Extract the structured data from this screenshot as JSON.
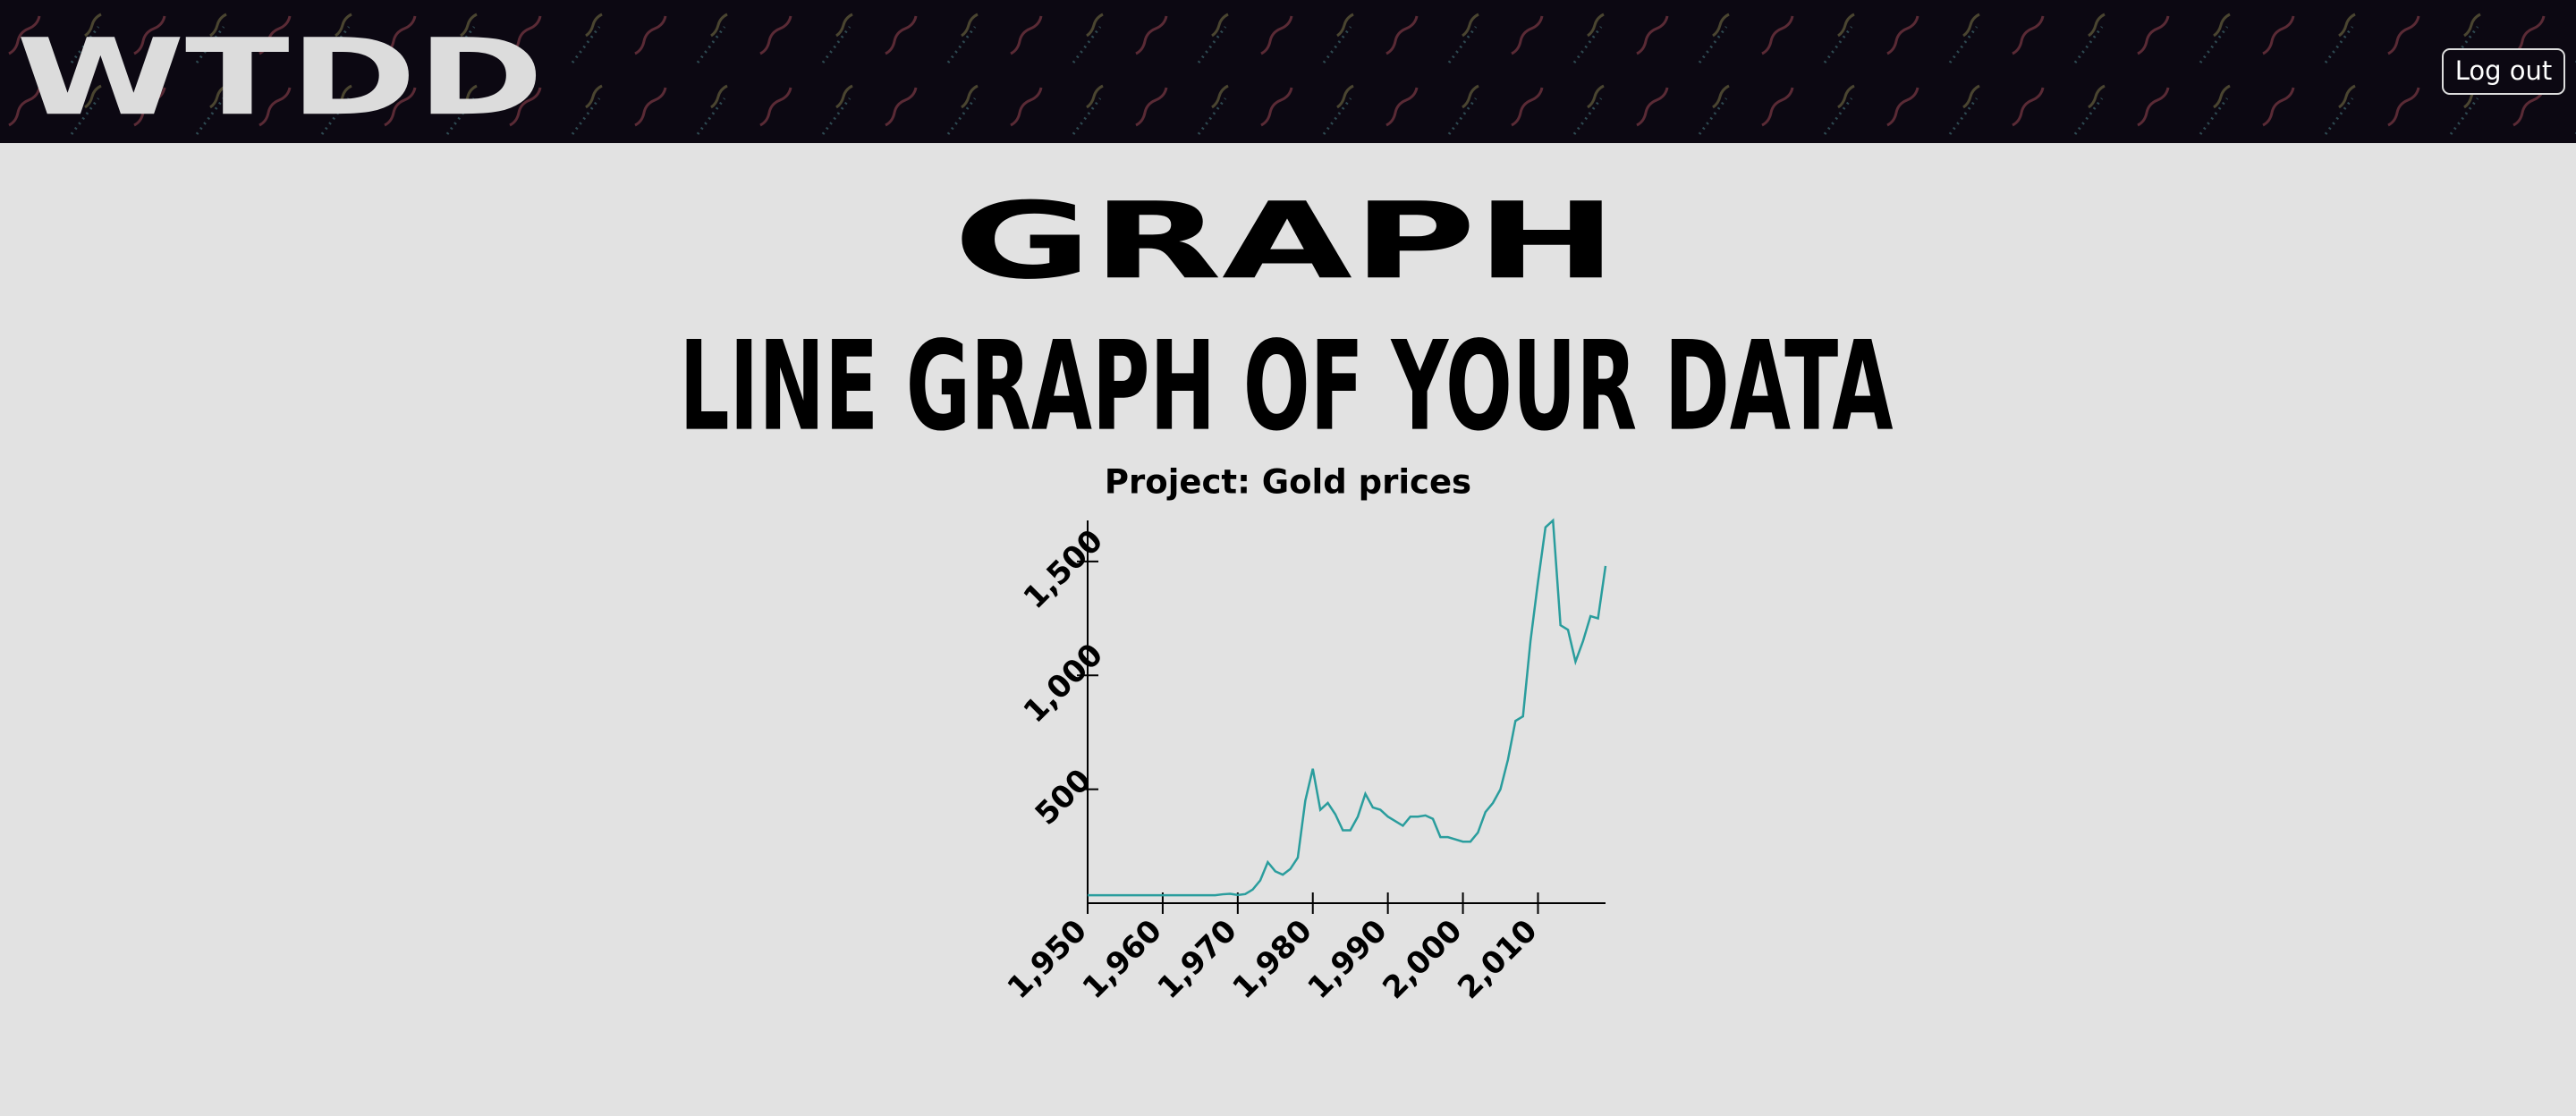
{
  "header": {
    "logo": "WTDD",
    "logout": "Log out"
  },
  "page": {
    "title": "GRAPH",
    "heading": "LINE GRAPH OF YOUR DATA"
  },
  "chart_data": {
    "type": "line",
    "title": "Project: Gold prices",
    "x": [
      1950,
      1951,
      1952,
      1953,
      1954,
      1955,
      1956,
      1957,
      1958,
      1959,
      1960,
      1961,
      1962,
      1963,
      1964,
      1965,
      1966,
      1967,
      1968,
      1969,
      1970,
      1971,
      1972,
      1973,
      1974,
      1975,
      1976,
      1977,
      1978,
      1979,
      1980,
      1981,
      1982,
      1983,
      1984,
      1985,
      1986,
      1987,
      1988,
      1989,
      1990,
      1991,
      1992,
      1993,
      1994,
      1995,
      1996,
      1997,
      1998,
      1999,
      2000,
      2001,
      2002,
      2003,
      2004,
      2005,
      2006,
      2007,
      2008,
      2009,
      2010,
      2011,
      2012,
      2013,
      2014,
      2015,
      2016,
      2017,
      2018,
      2019
    ],
    "series": [
      {
        "name": "Gold prices",
        "color": "#2a9d9d",
        "values": [
          35,
          35,
          35,
          35,
          35,
          35,
          35,
          35,
          35,
          35,
          35,
          35,
          35,
          35,
          35,
          35,
          35,
          35,
          39,
          41,
          36,
          40,
          60,
          100,
          180,
          140,
          125,
          150,
          200,
          450,
          590,
          410,
          440,
          390,
          320,
          320,
          380,
          480,
          420,
          410,
          380,
          360,
          340,
          380,
          380,
          385,
          370,
          290,
          290,
          280,
          270,
          270,
          310,
          400,
          440,
          500,
          630,
          800,
          820,
          1150,
          1410,
          1650,
          1680,
          1220,
          1200,
          1060,
          1150,
          1260,
          1250,
          1480
        ]
      }
    ],
    "xlim": [
      1950,
      2019
    ],
    "ylim": [
      0,
      1680
    ],
    "xticks": [
      {
        "value": 1950,
        "label": "1,950"
      },
      {
        "value": 1960,
        "label": "1,960"
      },
      {
        "value": 1970,
        "label": "1,970"
      },
      {
        "value": 1980,
        "label": "1,980"
      },
      {
        "value": 1990,
        "label": "1,990"
      },
      {
        "value": 2000,
        "label": "2,000"
      },
      {
        "value": 2010,
        "label": "2,010"
      }
    ],
    "yticks": [
      500,
      {
        "value": 1000,
        "label": "1,000"
      },
      {
        "value": 1500,
        "label": "1,500"
      }
    ]
  }
}
